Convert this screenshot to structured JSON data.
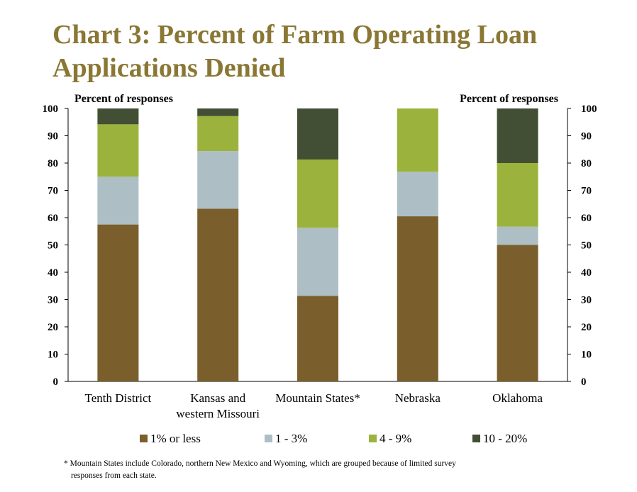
{
  "title": {
    "line1": "Chart 3: Percent of Farm Operating Loan",
    "line2": "Applications Denied"
  },
  "footnote": {
    "line1": "* Mountain States include Colorado, northern New Mexico and Wyoming, which are grouped because of limited survey",
    "line2": "responses from each state."
  },
  "chart_data": {
    "type": "bar",
    "stacked": true,
    "title": "Chart 3: Percent of Farm Operating Loan Applications Denied",
    "ylabel_left": "Percent of responses",
    "ylabel_right": "Percent of responses",
    "ylim": [
      0,
      100
    ],
    "yticks": [
      0,
      10,
      20,
      30,
      40,
      50,
      60,
      70,
      80,
      90,
      100
    ],
    "grid": false,
    "legend_position": "bottom",
    "categories": [
      [
        "Tenth District"
      ],
      [
        "Kansas and",
        "western Missouri"
      ],
      [
        "Mountain States*"
      ],
      [
        "Nebraska"
      ],
      [
        "Oklahoma"
      ]
    ],
    "series": [
      {
        "name": "1% or less",
        "color": "#7a5f2c",
        "values": [
          57.5,
          63.3,
          31.3,
          60.5,
          50.0
        ]
      },
      {
        "name": "1 - 3%",
        "color": "#adbfc4",
        "values": [
          17.5,
          21.1,
          25.0,
          16.3,
          6.7
        ]
      },
      {
        "name": "4 - 9%",
        "color": "#9bb33c",
        "values": [
          19.2,
          12.8,
          25.0,
          23.2,
          23.3
        ]
      },
      {
        "name": "10 - 20%",
        "color": "#434f34",
        "values": [
          5.8,
          2.8,
          18.7,
          0.0,
          20.0
        ]
      }
    ]
  }
}
